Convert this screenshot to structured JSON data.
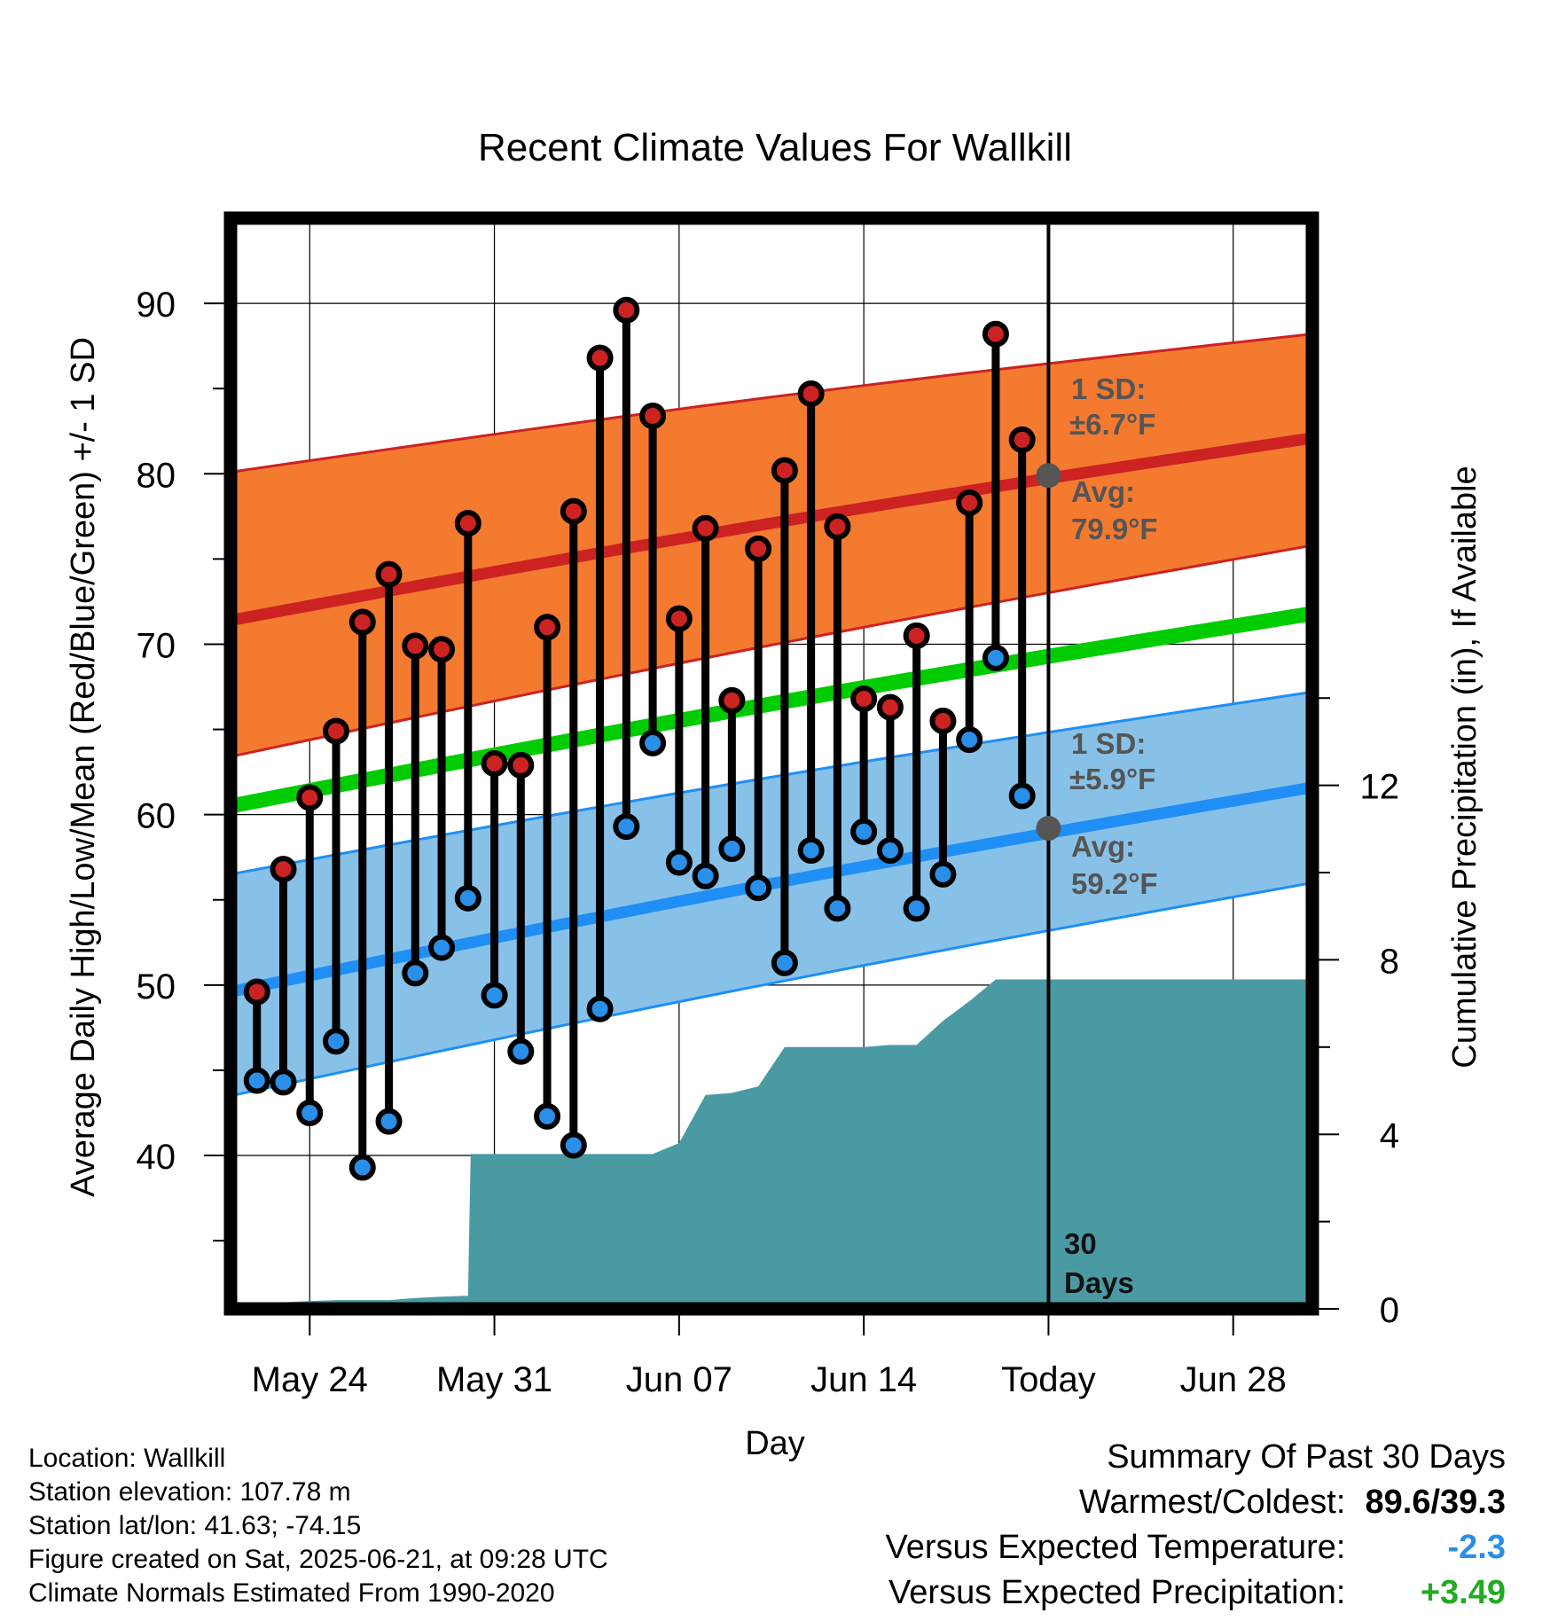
{
  "chart_data": {
    "type": "line",
    "title": "Recent Climate Values For Wallkill",
    "xlabel": "Day",
    "ylabel_left": "Average Daily High/Low/Mean (Red/Blue/Green) +/- 1 SD",
    "ylabel_right": "Cumulative Precipitation (in), If Available",
    "x_tick_labels": [
      "May 24",
      "May 31",
      "Jun 07",
      "Jun 14",
      "Today",
      "Jun 28"
    ],
    "x_tick_days": [
      3,
      10,
      17,
      24,
      31,
      38
    ],
    "xlim": [
      0,
      41
    ],
    "y_left_ticks": [
      "40",
      "50",
      "60",
      "70",
      "80",
      "90"
    ],
    "y_left_tick_values": [
      40,
      50,
      60,
      70,
      80,
      90
    ],
    "ylim_left": [
      31,
      95
    ],
    "y_right_ticks": [
      "0",
      "4",
      "8",
      "12"
    ],
    "y_right_tick_values": [
      0,
      4,
      8,
      12
    ],
    "ylim_right": [
      0,
      25
    ],
    "today_day": 31,
    "series": [
      {
        "name": "Daily High",
        "color": "#cc2222",
        "days": [
          1,
          2,
          3,
          4,
          5,
          6,
          7,
          8,
          9,
          10,
          11,
          12,
          13,
          14,
          15,
          16,
          17,
          18,
          19,
          20,
          21,
          22,
          23,
          24,
          25,
          26,
          27,
          28,
          29,
          30
        ],
        "values": [
          49.6,
          56.8,
          61.0,
          64.9,
          71.3,
          74.1,
          69.9,
          69.7,
          77.1,
          63.0,
          62.9,
          71.0,
          77.8,
          86.8,
          89.6,
          83.4,
          71.5,
          76.8,
          66.7,
          75.6,
          80.2,
          84.7,
          76.9,
          66.8,
          66.3,
          70.5,
          65.5,
          78.3,
          88.2,
          82.0
        ]
      },
      {
        "name": "Daily Low",
        "color": "#2a8fe8",
        "days": [
          1,
          2,
          3,
          4,
          5,
          6,
          7,
          8,
          9,
          10,
          11,
          12,
          13,
          14,
          15,
          16,
          17,
          18,
          19,
          20,
          21,
          22,
          23,
          24,
          25,
          26,
          27,
          28,
          29,
          30
        ],
        "values": [
          44.4,
          44.3,
          42.5,
          46.7,
          39.3,
          42.0,
          50.7,
          52.2,
          55.1,
          49.4,
          46.1,
          42.3,
          40.6,
          48.6,
          59.3,
          64.2,
          57.2,
          56.4,
          58.0,
          55.7,
          51.3,
          57.9,
          54.5,
          59.0,
          57.9,
          54.5,
          56.5,
          64.4,
          69.2,
          61.1
        ]
      },
      {
        "name": "Normal High",
        "color": "#cc2222",
        "days": [
          0,
          41
        ],
        "values": [
          71.4,
          82.1
        ]
      },
      {
        "name": "Normal High +1 SD",
        "color": "#f47a30",
        "days": [
          0,
          41
        ],
        "values": [
          80.1,
          88.2
        ]
      },
      {
        "name": "Normal High -1 SD",
        "color": "#f47a30",
        "days": [
          0,
          41
        ],
        "values": [
          63.4,
          75.8
        ]
      },
      {
        "name": "Normal Low",
        "color": "#1f8ff5",
        "days": [
          0,
          41
        ],
        "values": [
          49.6,
          61.6
        ]
      },
      {
        "name": "Normal Low +1 SD",
        "color": "#88c1e8",
        "days": [
          0,
          41
        ],
        "values": [
          56.5,
          67.2
        ]
      },
      {
        "name": "Normal Low -1 SD",
        "color": "#88c1e8",
        "days": [
          0,
          41
        ],
        "values": [
          43.5,
          56.0
        ]
      },
      {
        "name": "Normal Mean",
        "color": "#00cc00",
        "days": [
          0,
          41
        ],
        "values": [
          60.5,
          71.8
        ]
      },
      {
        "name": "Cumulative Precipitation",
        "color": "#4a9aa4",
        "days": [
          0,
          1,
          2,
          3,
          4,
          5,
          6,
          7,
          8,
          9,
          9.1,
          10,
          11,
          12,
          13,
          14,
          15,
          16,
          17,
          18,
          19,
          20,
          21,
          22,
          23,
          24,
          25,
          26,
          27,
          28,
          29,
          30,
          31,
          32,
          33,
          34,
          35,
          36,
          37,
          38,
          39,
          40,
          41
        ],
        "values": [
          0,
          0.05,
          0.15,
          0.18,
          0.2,
          0.2,
          0.2,
          0.25,
          0.28,
          0.3,
          3.55,
          3.55,
          3.55,
          3.55,
          3.55,
          3.55,
          3.55,
          3.55,
          3.8,
          4.9,
          4.95,
          5.1,
          6.0,
          6.0,
          6.0,
          6.0,
          6.05,
          6.05,
          6.6,
          7.05,
          7.55,
          7.55,
          7.55,
          7.55,
          7.55,
          7.55,
          7.55,
          7.55,
          7.55,
          7.55,
          7.55,
          7.55,
          7.55
        ]
      }
    ],
    "today_markers": {
      "high_avg": 79.9,
      "low_avg": 59.2
    },
    "annotations": {
      "high_sd_line1": "1 SD:",
      "high_sd_line2": "±6.7°F",
      "high_avg_line1": "Avg:",
      "high_avg_line2": "79.9°F",
      "low_sd_line1": "1 SD:",
      "low_sd_line2": "±5.9°F",
      "low_avg_line1": "Avg:",
      "low_avg_line2": "59.2°F",
      "days_line1": "30",
      "days_line2": "Days"
    },
    "grid": true
  },
  "colors": {
    "high_band": "#f47a30",
    "high_line": "#cc2222",
    "low_band": "#88c1e8",
    "low_line": "#1f8ff5",
    "mean_line": "#00cc00",
    "precip": "#4a9aa4",
    "positive": "#22aa22",
    "negative": "#2a8fe8"
  },
  "info": {
    "location": "Location: Wallkill",
    "elevation": "Station elevation: 107.78 m",
    "latlon": "Station lat/lon: 41.63; -74.15",
    "created": "Figure created on Sat, 2025-06-21, at 09:28 UTC",
    "normals": "Climate Normals Estimated From 1990-2020"
  },
  "summary": {
    "title": "Summary Of Past 30 Days",
    "warmest_label": "Warmest/Coldest:",
    "warmest_value": "89.6/39.3",
    "temp_label": "Versus Expected Temperature:",
    "temp_value": "-2.3",
    "precip_label": "Versus Expected Precipitation:",
    "precip_value": "+3.49"
  }
}
